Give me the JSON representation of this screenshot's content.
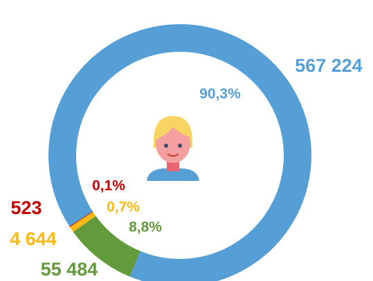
{
  "chart_data": {
    "type": "donut",
    "categories": [
      null,
      null,
      null,
      null
    ],
    "values": [
      567224,
      55484,
      4644,
      523
    ],
    "value_labels": [
      "567 224",
      "55 484",
      "4 644",
      "523"
    ],
    "shares": [
      90.3,
      8.8,
      0.7,
      0.1
    ],
    "share_labels": [
      "90,3%",
      "8,8%",
      "0,7%",
      "0,1%"
    ],
    "colors": [
      "#559fd6",
      "#629a3c",
      "#fdb813",
      "#c00000"
    ]
  }
}
